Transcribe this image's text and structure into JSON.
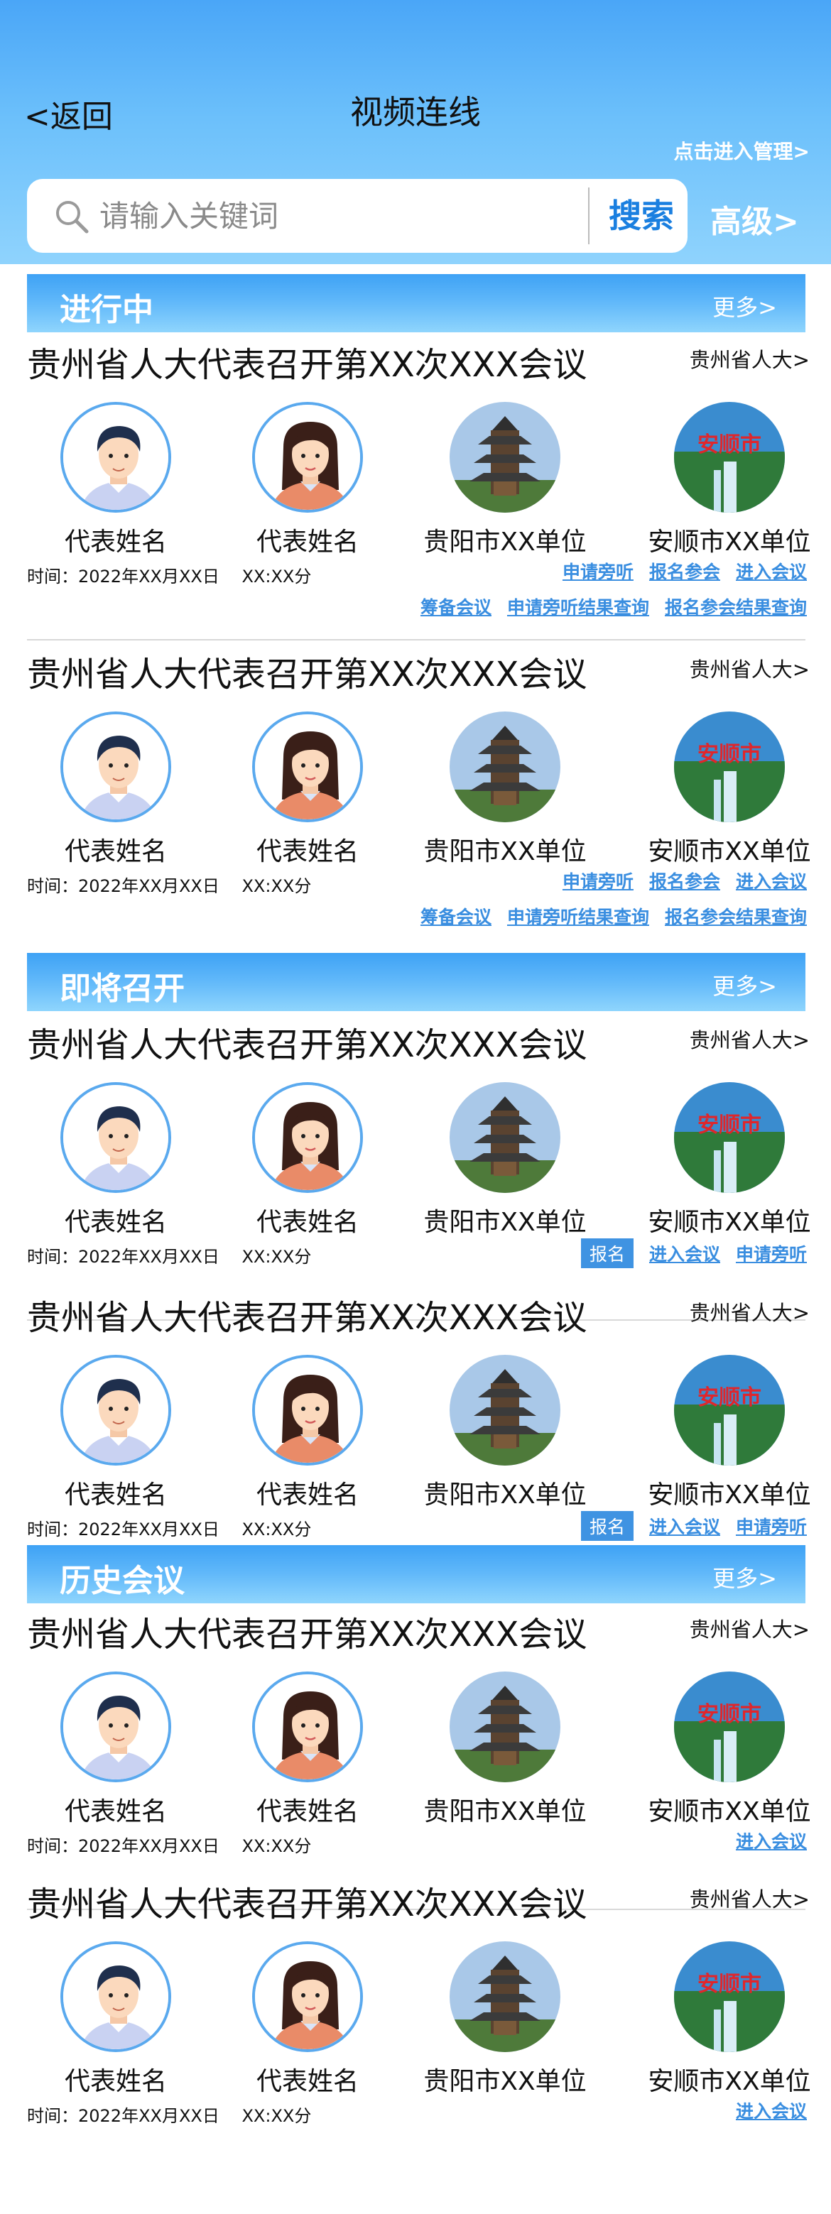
{
  "header": {
    "back_label": "<返回",
    "title": "视频连线",
    "manage_label": "点击进入管理>",
    "search_placeholder": "请输入关键词",
    "search_button": "搜索",
    "advanced_label": "高级>"
  },
  "sections": [
    {
      "title": "进行中",
      "more": "更多>",
      "meetings": [
        {
          "title": "贵州省人大代表召开第XX次XXX会议",
          "org": "贵州省人大>",
          "participants": [
            "代表姓名",
            "代表姓名",
            "贵阳市XX单位",
            "安顺市XX单位"
          ],
          "time": "时间：2022年XX月XX日　 XX:XX分",
          "actions_row1": [
            "申请旁听",
            "报名参会",
            "进入会议"
          ],
          "actions_row2": [
            "筹备会议",
            "申请旁听结果查询",
            "报名参会结果查询"
          ]
        },
        {
          "title": "贵州省人大代表召开第XX次XXX会议",
          "org": "贵州省人大>",
          "participants": [
            "代表姓名",
            "代表姓名",
            "贵阳市XX单位",
            "安顺市XX单位"
          ],
          "time": "时间：2022年XX月XX日　 XX:XX分",
          "actions_row1": [
            "申请旁听",
            "报名参会",
            "进入会议"
          ],
          "actions_row2": [
            "筹备会议",
            "申请旁听结果查询",
            "报名参会结果查询"
          ]
        }
      ]
    },
    {
      "title": "即将召开",
      "more": "更多>",
      "meetings": [
        {
          "title": "贵州省人大代表召开第XX次XXX会议",
          "org": "贵州省人大>",
          "participants": [
            "代表姓名",
            "代表姓名",
            "贵阳市XX单位",
            "安顺市XX单位"
          ],
          "time": "时间：2022年XX月XX日　 XX:XX分",
          "tag": "报名",
          "actions_row1": [
            "进入会议",
            "申请旁听"
          ]
        },
        {
          "title": "贵州省人大代表召开第XX次XXX会议",
          "org": "贵州省人大>",
          "participants": [
            "代表姓名",
            "代表姓名",
            "贵阳市XX单位",
            "安顺市XX单位"
          ],
          "time": "时间：2022年XX月XX日　 XX:XX分",
          "tag": "报名",
          "actions_row1": [
            "进入会议",
            "申请旁听"
          ]
        }
      ]
    },
    {
      "title": "历史会议",
      "more": "更多>",
      "meetings": [
        {
          "title": "贵州省人大代表召开第XX次XXX会议",
          "org": "贵州省人大>",
          "participants": [
            "代表姓名",
            "代表姓名",
            "贵阳市XX单位",
            "安顺市XX单位"
          ],
          "time": "时间：2022年XX月XX日　 XX:XX分",
          "actions_row1": [
            "进入会议"
          ]
        },
        {
          "title": "贵州省人大代表召开第XX次XXX会议",
          "org": "贵州省人大>",
          "participants": [
            "代表姓名",
            "代表姓名",
            "贵阳市XX单位",
            "安顺市XX单位"
          ],
          "time": "时间：2022年XX月XX日　 XX:XX分",
          "actions_row1": [
            "进入会议"
          ]
        }
      ]
    }
  ],
  "city_logo_text": "安顺市",
  "colors": {
    "accent": "#3f93e2",
    "header_top": "#4aa6f7",
    "link": "#3a8ee0"
  }
}
